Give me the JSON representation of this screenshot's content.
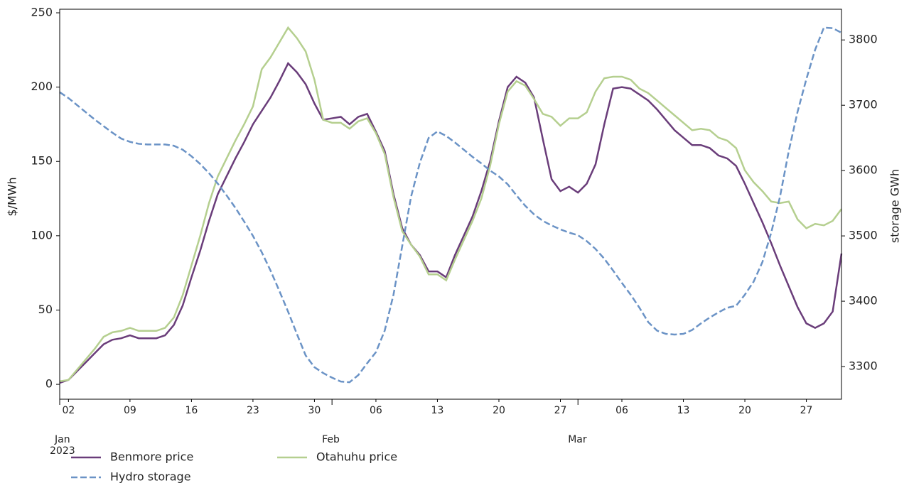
{
  "chart_data": {
    "type": "line",
    "x_start": "2023-01-01",
    "x_step_days": 1,
    "xlim": [
      "2023-01-01",
      "2023-03-31"
    ],
    "xticks": [
      {
        "value": "2023-01-02",
        "label": "02"
      },
      {
        "value": "2023-01-09",
        "label": "09"
      },
      {
        "value": "2023-01-16",
        "label": "16"
      },
      {
        "value": "2023-01-23",
        "label": "23"
      },
      {
        "value": "2023-01-30",
        "label": "30"
      },
      {
        "value": "2023-02-06",
        "label": "06"
      },
      {
        "value": "2023-02-13",
        "label": "13"
      },
      {
        "value": "2023-02-20",
        "label": "20"
      },
      {
        "value": "2023-02-27",
        "label": "27"
      },
      {
        "value": "2023-03-06",
        "label": "06"
      },
      {
        "value": "2023-03-13",
        "label": "13"
      },
      {
        "value": "2023-03-20",
        "label": "20"
      },
      {
        "value": "2023-03-27",
        "label": "27"
      }
    ],
    "xticks_major": [
      {
        "value": "2023-01-01",
        "label": "Jan\n2023"
      },
      {
        "value": "2023-02-01",
        "label": "Feb"
      },
      {
        "value": "2023-03-01",
        "label": "Mar"
      }
    ],
    "ylabel": "$/MWh",
    "y2label": "storage GWh",
    "ylim": [
      -10,
      252.4
    ],
    "yticks": [
      0,
      50,
      100,
      150,
      200,
      250
    ],
    "y2lim": [
      3250,
      3847
    ],
    "y2ticks": [
      3300,
      3400,
      3500,
      3600,
      3700,
      3800
    ],
    "legend": "below left",
    "grid": false,
    "series": [
      {
        "name": "Benmore price",
        "color": "#6a3d7a",
        "linestyle": "solid",
        "values": [
          1,
          3,
          9,
          15,
          21,
          27,
          30,
          31,
          33,
          31,
          31,
          31,
          33,
          40,
          53,
          72,
          90,
          110,
          128,
          140,
          152,
          163,
          175,
          184,
          193,
          204,
          216,
          210,
          202,
          189,
          178,
          179,
          180,
          175,
          180,
          182,
          170,
          157,
          128,
          105,
          94,
          87,
          76,
          76,
          72,
          87,
          100,
          113,
          130,
          150,
          177,
          200,
          207,
          203,
          193,
          165,
          138,
          130,
          133,
          129,
          135,
          148,
          175,
          199,
          200,
          199,
          195,
          191,
          185,
          178,
          171,
          166,
          161,
          161,
          159,
          154,
          152,
          147,
          135,
          122,
          109,
          95,
          80,
          66,
          52,
          41,
          38,
          41,
          49,
          88
        ]
      },
      {
        "name": "Otahuhu price",
        "color": "#b5cf8f",
        "linestyle": "solid",
        "values": [
          2,
          3,
          10,
          17,
          24,
          32,
          35,
          36,
          38,
          36,
          36,
          36,
          38,
          45,
          60,
          80,
          100,
          122,
          140,
          152,
          164,
          175,
          187,
          212,
          220,
          230,
          240,
          233,
          224,
          205,
          178,
          176,
          176,
          172,
          177,
          179,
          169,
          155,
          126,
          103,
          94,
          86,
          74,
          74,
          70,
          84,
          97,
          110,
          125,
          147,
          175,
          197,
          204,
          201,
          192,
          182,
          180,
          174,
          179,
          179,
          183,
          197,
          206,
          207,
          207,
          205,
          199,
          196,
          191,
          186,
          181,
          176,
          171,
          172,
          171,
          166,
          164,
          159,
          144,
          136,
          130,
          123,
          122,
          123,
          111,
          105,
          108,
          107,
          110,
          118
        ]
      },
      {
        "name": "Hydro storage",
        "color": "#6b93c6",
        "linestyle": "dashed",
        "axis": "y2",
        "values": [
          3720,
          3711,
          3700,
          3689,
          3678,
          3668,
          3658,
          3649,
          3644,
          3641,
          3640,
          3640,
          3640,
          3638,
          3632,
          3622,
          3610,
          3596,
          3580,
          3562,
          3543,
          3522,
          3500,
          3475,
          3447,
          3416,
          3384,
          3350,
          3317,
          3299,
          3290,
          3283,
          3277,
          3276,
          3287,
          3305,
          3322,
          3355,
          3410,
          3485,
          3560,
          3612,
          3650,
          3660,
          3653,
          3643,
          3632,
          3621,
          3611,
          3600,
          3591,
          3579,
          3562,
          3546,
          3533,
          3523,
          3516,
          3510,
          3505,
          3501,
          3492,
          3480,
          3465,
          3447,
          3428,
          3410,
          3390,
          3368,
          3355,
          3350,
          3349,
          3350,
          3356,
          3366,
          3375,
          3383,
          3390,
          3393,
          3410,
          3430,
          3460,
          3505,
          3560,
          3630,
          3690,
          3740,
          3785,
          3819,
          3818,
          3811
        ]
      }
    ]
  }
}
